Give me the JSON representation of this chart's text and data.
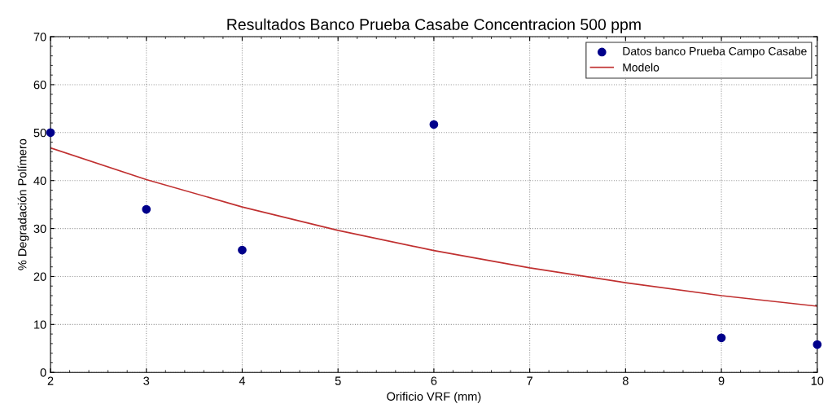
{
  "chart_data": {
    "type": "scatter",
    "title": "Resultados Banco Prueba Casabe Concentracion 500 ppm",
    "xlabel": "Orificio VRF (mm)",
    "ylabel": "% Degradación Polímero",
    "xlim": [
      2,
      10
    ],
    "xticks": [
      2,
      3,
      4,
      5,
      6,
      7,
      8,
      9,
      10
    ],
    "ylim": [
      0,
      70
    ],
    "yticks": [
      0,
      10,
      20,
      30,
      40,
      50,
      60,
      70
    ],
    "grid": true,
    "legend": "top right",
    "series": [
      {
        "name": "Datos banco Prueba Campo Casabe",
        "marker": "circle",
        "color": "#00008b",
        "x": [
          2,
          3,
          4,
          6,
          9,
          10
        ],
        "values": [
          50,
          34,
          25.5,
          51.7,
          7.2,
          5.8
        ]
      },
      {
        "name": "Modelo",
        "type": "line",
        "color": "#c03030",
        "line_style": "solid",
        "x": [
          2,
          3,
          4,
          5,
          6,
          7,
          8,
          9,
          10
        ],
        "values": [
          46.8,
          40.2,
          34.5,
          29.6,
          25.4,
          21.8,
          18.7,
          16.0,
          13.8
        ]
      }
    ]
  }
}
